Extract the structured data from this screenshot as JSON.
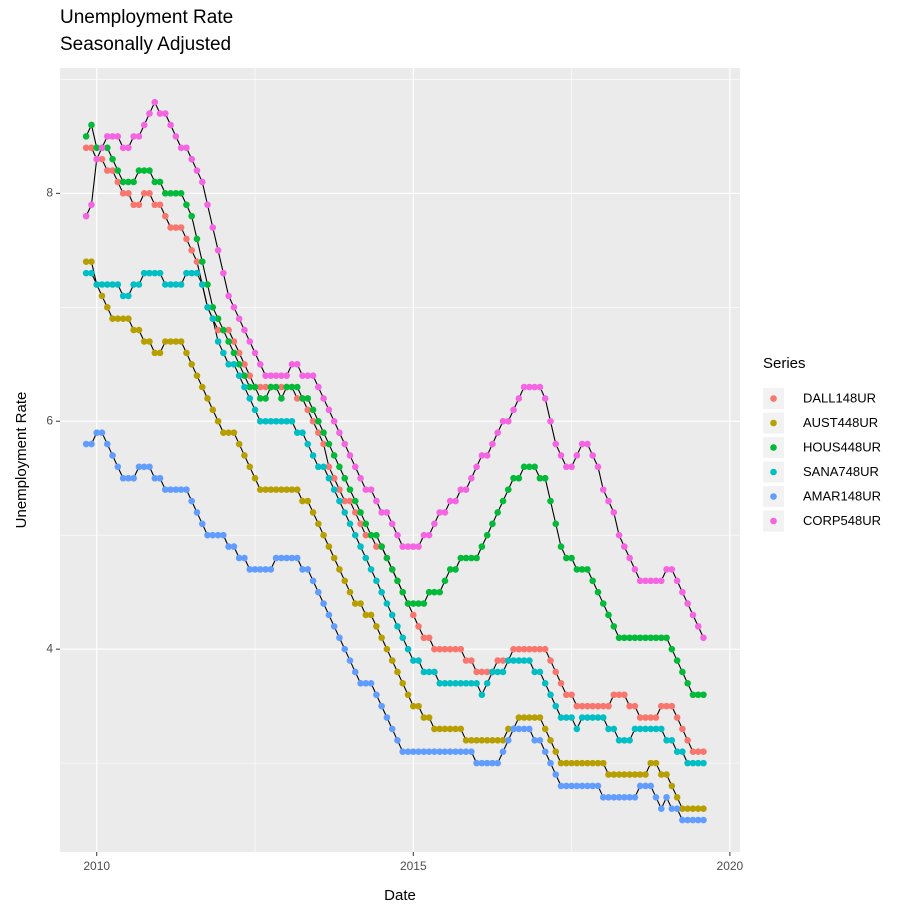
{
  "chart_data": {
    "type": "line",
    "title": "Unemployment Rate",
    "subtitle": "Seasonally Adjusted",
    "x_label": "Date",
    "y_label": "Unemployment Rate",
    "legend_title": "Series",
    "legend_position": "right",
    "grid": true,
    "line_color": "#000000",
    "markers": true,
    "xlim": [
      2009.42,
      2020.16
    ],
    "ylim": [
      2.22,
      9.1
    ],
    "xticks": [
      2010,
      2015,
      2020
    ],
    "yticks": [
      4,
      6,
      8
    ],
    "minor_xticks": [
      2012.5,
      2017.5
    ],
    "minor_yticks": [
      3,
      5,
      7,
      9
    ],
    "x": [
      2009.833,
      2009.917,
      2010.0,
      2010.083,
      2010.167,
      2010.25,
      2010.333,
      2010.417,
      2010.5,
      2010.583,
      2010.667,
      2010.75,
      2010.833,
      2010.917,
      2011.0,
      2011.083,
      2011.167,
      2011.25,
      2011.333,
      2011.417,
      2011.5,
      2011.583,
      2011.667,
      2011.75,
      2011.833,
      2011.917,
      2012.0,
      2012.083,
      2012.167,
      2012.25,
      2012.333,
      2012.417,
      2012.5,
      2012.583,
      2012.667,
      2012.75,
      2012.833,
      2012.917,
      2013.0,
      2013.083,
      2013.167,
      2013.25,
      2013.333,
      2013.417,
      2013.5,
      2013.583,
      2013.667,
      2013.75,
      2013.833,
      2013.917,
      2014.0,
      2014.083,
      2014.167,
      2014.25,
      2014.333,
      2014.417,
      2014.5,
      2014.583,
      2014.667,
      2014.75,
      2014.833,
      2014.917,
      2015.0,
      2015.083,
      2015.167,
      2015.25,
      2015.333,
      2015.417,
      2015.5,
      2015.583,
      2015.667,
      2015.75,
      2015.833,
      2015.917,
      2016.0,
      2016.083,
      2016.167,
      2016.25,
      2016.333,
      2016.417,
      2016.5,
      2016.583,
      2016.667,
      2016.75,
      2016.833,
      2016.917,
      2017.0,
      2017.083,
      2017.167,
      2017.25,
      2017.333,
      2017.417,
      2017.5,
      2017.583,
      2017.667,
      2017.75,
      2017.833,
      2017.917,
      2018.0,
      2018.083,
      2018.167,
      2018.25,
      2018.333,
      2018.417,
      2018.5,
      2018.583,
      2018.667,
      2018.75,
      2018.833,
      2018.917,
      2019.0,
      2019.083,
      2019.167,
      2019.25,
      2019.333,
      2019.417,
      2019.5,
      2019.583
    ],
    "series": [
      {
        "name": "DALL148UR",
        "color": "#F8766D",
        "values": [
          8.4,
          8.4,
          8.3,
          8.3,
          8.2,
          8.2,
          8.1,
          8.0,
          8.0,
          7.9,
          7.9,
          8.0,
          8.0,
          7.9,
          7.9,
          7.8,
          7.7,
          7.7,
          7.7,
          7.6,
          7.5,
          7.4,
          7.2,
          7.0,
          6.9,
          6.8,
          6.8,
          6.8,
          6.7,
          6.6,
          6.5,
          6.4,
          6.3,
          6.3,
          6.3,
          6.3,
          6.3,
          6.3,
          6.3,
          6.3,
          6.2,
          6.2,
          6.1,
          6.0,
          5.9,
          5.8,
          5.6,
          5.5,
          5.4,
          5.3,
          5.3,
          5.2,
          5.1,
          5.0,
          5.0,
          4.9,
          4.9,
          4.8,
          4.7,
          4.6,
          4.5,
          4.4,
          4.3,
          4.2,
          4.1,
          4.1,
          4.0,
          4.0,
          4.0,
          4.0,
          4.0,
          4.0,
          3.9,
          3.9,
          3.8,
          3.8,
          3.8,
          3.8,
          3.9,
          3.9,
          3.9,
          4.0,
          4.0,
          4.0,
          4.0,
          4.0,
          4.0,
          4.0,
          3.9,
          3.8,
          3.7,
          3.6,
          3.6,
          3.5,
          3.5,
          3.5,
          3.5,
          3.5,
          3.5,
          3.5,
          3.6,
          3.6,
          3.6,
          3.5,
          3.5,
          3.4,
          3.4,
          3.4,
          3.4,
          3.5,
          3.5,
          3.5,
          3.4,
          3.3,
          3.2,
          3.1,
          3.1,
          3.1
        ]
      },
      {
        "name": "AUST448UR",
        "color": "#B79F00",
        "values": [
          7.4,
          7.4,
          7.2,
          7.1,
          7.0,
          6.9,
          6.9,
          6.9,
          6.9,
          6.8,
          6.8,
          6.7,
          6.7,
          6.6,
          6.6,
          6.7,
          6.7,
          6.7,
          6.7,
          6.6,
          6.5,
          6.4,
          6.3,
          6.2,
          6.1,
          6.0,
          5.9,
          5.9,
          5.9,
          5.8,
          5.7,
          5.6,
          5.5,
          5.4,
          5.4,
          5.4,
          5.4,
          5.4,
          5.4,
          5.4,
          5.4,
          5.3,
          5.3,
          5.2,
          5.1,
          5.0,
          4.9,
          4.8,
          4.7,
          4.6,
          4.5,
          4.4,
          4.4,
          4.3,
          4.3,
          4.2,
          4.1,
          4.0,
          3.9,
          3.8,
          3.7,
          3.6,
          3.5,
          3.5,
          3.4,
          3.4,
          3.3,
          3.3,
          3.3,
          3.3,
          3.3,
          3.3,
          3.2,
          3.2,
          3.2,
          3.2,
          3.2,
          3.2,
          3.2,
          3.2,
          3.3,
          3.3,
          3.4,
          3.4,
          3.4,
          3.4,
          3.4,
          3.3,
          3.2,
          3.1,
          3.0,
          3.0,
          3.0,
          3.0,
          3.0,
          3.0,
          3.0,
          3.0,
          3.0,
          2.9,
          2.9,
          2.9,
          2.9,
          2.9,
          2.9,
          2.9,
          2.9,
          3.0,
          3.0,
          2.9,
          2.9,
          2.8,
          2.7,
          2.6,
          2.6,
          2.6,
          2.6,
          2.6
        ]
      },
      {
        "name": "HOUS448UR",
        "color": "#00BA38",
        "values": [
          8.5,
          8.6,
          8.4,
          8.4,
          8.4,
          8.3,
          8.2,
          8.1,
          8.1,
          8.1,
          8.2,
          8.2,
          8.2,
          8.1,
          8.1,
          8.0,
          8.0,
          8.0,
          8.0,
          7.9,
          7.8,
          7.6,
          7.4,
          7.2,
          7.0,
          6.9,
          6.8,
          6.7,
          6.6,
          6.5,
          6.4,
          6.3,
          6.3,
          6.2,
          6.2,
          6.3,
          6.3,
          6.2,
          6.3,
          6.3,
          6.3,
          6.2,
          6.2,
          6.1,
          6.0,
          5.9,
          5.8,
          5.7,
          5.6,
          5.5,
          5.4,
          5.3,
          5.2,
          5.1,
          5.0,
          5.0,
          4.9,
          4.8,
          4.7,
          4.6,
          4.5,
          4.4,
          4.4,
          4.4,
          4.4,
          4.5,
          4.5,
          4.5,
          4.6,
          4.7,
          4.7,
          4.8,
          4.8,
          4.8,
          4.8,
          4.9,
          5.0,
          5.1,
          5.2,
          5.3,
          5.4,
          5.5,
          5.5,
          5.6,
          5.6,
          5.6,
          5.5,
          5.5,
          5.3,
          5.1,
          4.9,
          4.8,
          4.8,
          4.7,
          4.7,
          4.7,
          4.6,
          4.5,
          4.4,
          4.3,
          4.2,
          4.1,
          4.1,
          4.1,
          4.1,
          4.1,
          4.1,
          4.1,
          4.1,
          4.1,
          4.1,
          4.0,
          3.9,
          3.8,
          3.7,
          3.6,
          3.6,
          3.6
        ]
      },
      {
        "name": "SANA748UR",
        "color": "#00BFC4",
        "values": [
          7.3,
          7.3,
          7.2,
          7.2,
          7.2,
          7.2,
          7.2,
          7.1,
          7.1,
          7.2,
          7.2,
          7.3,
          7.3,
          7.3,
          7.3,
          7.2,
          7.2,
          7.2,
          7.2,
          7.3,
          7.3,
          7.3,
          7.2,
          7.0,
          6.9,
          6.7,
          6.6,
          6.5,
          6.5,
          6.4,
          6.3,
          6.2,
          6.1,
          6.0,
          6.0,
          6.0,
          6.0,
          6.0,
          6.0,
          6.0,
          5.9,
          5.9,
          5.8,
          5.7,
          5.6,
          5.6,
          5.5,
          5.4,
          5.3,
          5.2,
          5.1,
          5.0,
          4.9,
          4.8,
          4.7,
          4.6,
          4.5,
          4.4,
          4.3,
          4.2,
          4.1,
          4.0,
          3.9,
          3.9,
          3.8,
          3.8,
          3.8,
          3.7,
          3.7,
          3.7,
          3.7,
          3.7,
          3.7,
          3.7,
          3.7,
          3.6,
          3.7,
          3.8,
          3.8,
          3.8,
          3.9,
          3.9,
          3.9,
          3.9,
          3.9,
          3.8,
          3.8,
          3.7,
          3.6,
          3.5,
          3.4,
          3.4,
          3.4,
          3.3,
          3.4,
          3.4,
          3.4,
          3.4,
          3.4,
          3.3,
          3.3,
          3.2,
          3.2,
          3.2,
          3.3,
          3.3,
          3.3,
          3.3,
          3.3,
          3.3,
          3.2,
          3.2,
          3.1,
          3.1,
          3.0,
          3.0,
          3.0,
          3.0
        ]
      },
      {
        "name": "AMAR148UR",
        "color": "#619CFF",
        "values": [
          5.8,
          5.8,
          5.9,
          5.9,
          5.8,
          5.7,
          5.6,
          5.5,
          5.5,
          5.5,
          5.6,
          5.6,
          5.6,
          5.5,
          5.5,
          5.4,
          5.4,
          5.4,
          5.4,
          5.4,
          5.3,
          5.2,
          5.1,
          5.0,
          5.0,
          5.0,
          5.0,
          4.9,
          4.9,
          4.8,
          4.8,
          4.7,
          4.7,
          4.7,
          4.7,
          4.7,
          4.8,
          4.8,
          4.8,
          4.8,
          4.8,
          4.7,
          4.7,
          4.6,
          4.5,
          4.4,
          4.3,
          4.2,
          4.1,
          4.0,
          3.9,
          3.8,
          3.7,
          3.7,
          3.7,
          3.6,
          3.5,
          3.4,
          3.3,
          3.2,
          3.1,
          3.1,
          3.1,
          3.1,
          3.1,
          3.1,
          3.1,
          3.1,
          3.1,
          3.1,
          3.1,
          3.1,
          3.1,
          3.1,
          3.0,
          3.0,
          3.0,
          3.0,
          3.0,
          3.1,
          3.2,
          3.3,
          3.3,
          3.3,
          3.3,
          3.2,
          3.2,
          3.1,
          3.0,
          2.9,
          2.8,
          2.8,
          2.8,
          2.8,
          2.8,
          2.8,
          2.8,
          2.8,
          2.7,
          2.7,
          2.7,
          2.7,
          2.7,
          2.7,
          2.7,
          2.8,
          2.8,
          2.8,
          2.7,
          2.6,
          2.7,
          2.6,
          2.6,
          2.5,
          2.5,
          2.5,
          2.5,
          2.5
        ]
      },
      {
        "name": "CORP548UR",
        "color": "#F564E3",
        "values": [
          7.8,
          7.9,
          8.3,
          8.4,
          8.5,
          8.5,
          8.5,
          8.4,
          8.4,
          8.5,
          8.5,
          8.6,
          8.7,
          8.8,
          8.7,
          8.7,
          8.6,
          8.5,
          8.4,
          8.4,
          8.3,
          8.2,
          8.1,
          7.9,
          7.7,
          7.5,
          7.3,
          7.1,
          7.0,
          6.9,
          6.8,
          6.7,
          6.6,
          6.5,
          6.4,
          6.4,
          6.4,
          6.4,
          6.4,
          6.5,
          6.5,
          6.4,
          6.4,
          6.4,
          6.3,
          6.2,
          6.1,
          6.0,
          5.9,
          5.8,
          5.7,
          5.6,
          5.5,
          5.4,
          5.4,
          5.3,
          5.2,
          5.2,
          5.1,
          5.0,
          4.9,
          4.9,
          4.9,
          4.9,
          5.0,
          5.0,
          5.1,
          5.2,
          5.2,
          5.3,
          5.3,
          5.4,
          5.4,
          5.5,
          5.6,
          5.7,
          5.7,
          5.8,
          5.9,
          6.0,
          6.0,
          6.1,
          6.2,
          6.3,
          6.3,
          6.3,
          6.3,
          6.2,
          6.0,
          5.8,
          5.7,
          5.6,
          5.6,
          5.7,
          5.8,
          5.8,
          5.7,
          5.6,
          5.4,
          5.3,
          5.2,
          5.0,
          4.9,
          4.8,
          4.7,
          4.6,
          4.6,
          4.6,
          4.6,
          4.6,
          4.7,
          4.7,
          4.6,
          4.5,
          4.4,
          4.3,
          4.2,
          4.1
        ]
      }
    ]
  }
}
